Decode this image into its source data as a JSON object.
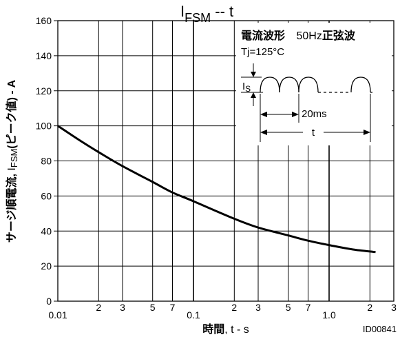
{
  "chart_data": {
    "type": "line",
    "title": {
      "main": "I",
      "sub": "FSM",
      "rest": " -- t"
    },
    "xlabel": {
      "bold": "時間",
      "rest": ", t - s"
    },
    "ylabel": {
      "bold1": "サージ順電流, ",
      "normal": "I",
      "sub": "FSM",
      "bold2": "(ピーク値) - A"
    },
    "x_scale": "log",
    "xlim": [
      0.01,
      3
    ],
    "ylim": [
      0,
      160
    ],
    "y_ticks": [
      0,
      20,
      40,
      60,
      80,
      100,
      120,
      140,
      160
    ],
    "y_tick_labels": [
      "0",
      "20",
      "40",
      "60",
      "80",
      "100",
      "120",
      "140",
      "160"
    ],
    "x_tick_values": [
      0.01,
      0.02,
      0.03,
      0.05,
      0.07,
      0.1,
      0.2,
      0.3,
      0.5,
      0.7,
      1.0,
      2,
      3
    ],
    "x_tick_labels": [
      "0.01",
      "2",
      "3",
      "5",
      "7",
      "0.1",
      "2",
      "3",
      "5",
      "7",
      "1.0",
      "2",
      "3"
    ],
    "grid": true,
    "series": [
      {
        "x": [
          0.01,
          0.015,
          0.02,
          0.03,
          0.05,
          0.07,
          0.1,
          0.2,
          0.3,
          0.5,
          0.7,
          1.0,
          1.5,
          2.2
        ],
        "y": [
          100,
          91,
          85,
          77,
          68,
          62,
          57,
          47,
          42,
          37.5,
          34.5,
          32,
          29.5,
          28
        ]
      }
    ],
    "annotations": {
      "waveform_title_bold": "電流波形",
      "waveform_freq": "50Hz",
      "waveform_type_bold": "正弦波",
      "tj": "Tj=125°C",
      "is_label": "I",
      "is_sub": "S",
      "period": "20ms",
      "duration": "t"
    },
    "figure_id": "ID00841"
  }
}
